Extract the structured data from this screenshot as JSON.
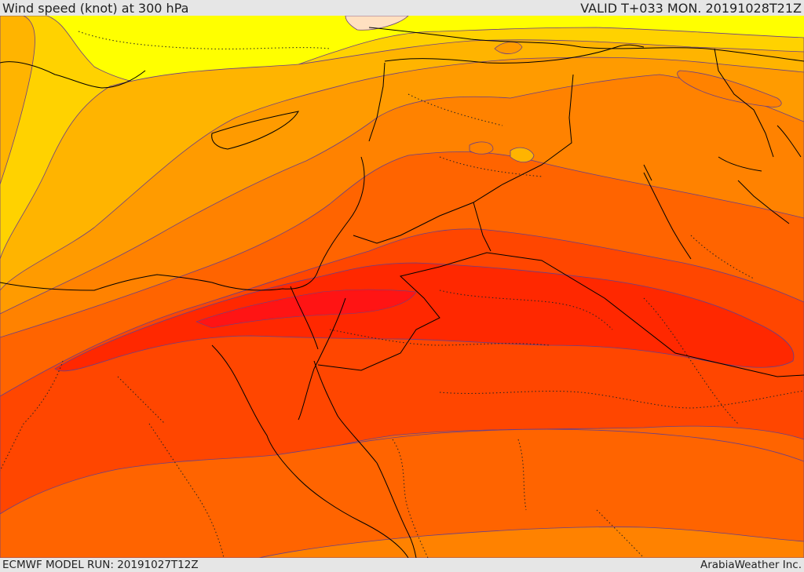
{
  "header": {
    "title": "Wind speed (knot) at 300 hPa",
    "valid": "VALID T+033 MON. 20191028T21Z"
  },
  "footer": {
    "model_run": "ECMWF MODEL RUN: 20191027T12Z",
    "credit": "ArabiaWeather Inc."
  },
  "colors": {
    "band_0": "#ffe0c0",
    "band_1": "#ffff00",
    "band_2": "#ffd200",
    "band_3": "#ffb400",
    "band_4": "#ff9b00",
    "band_5": "#ff8200",
    "band_6": "#ff6400",
    "band_7": "#ff4600",
    "band_8": "#ff2800",
    "band_9": "#ff1414",
    "contour": "#6a3f86",
    "border": "#000000"
  }
}
